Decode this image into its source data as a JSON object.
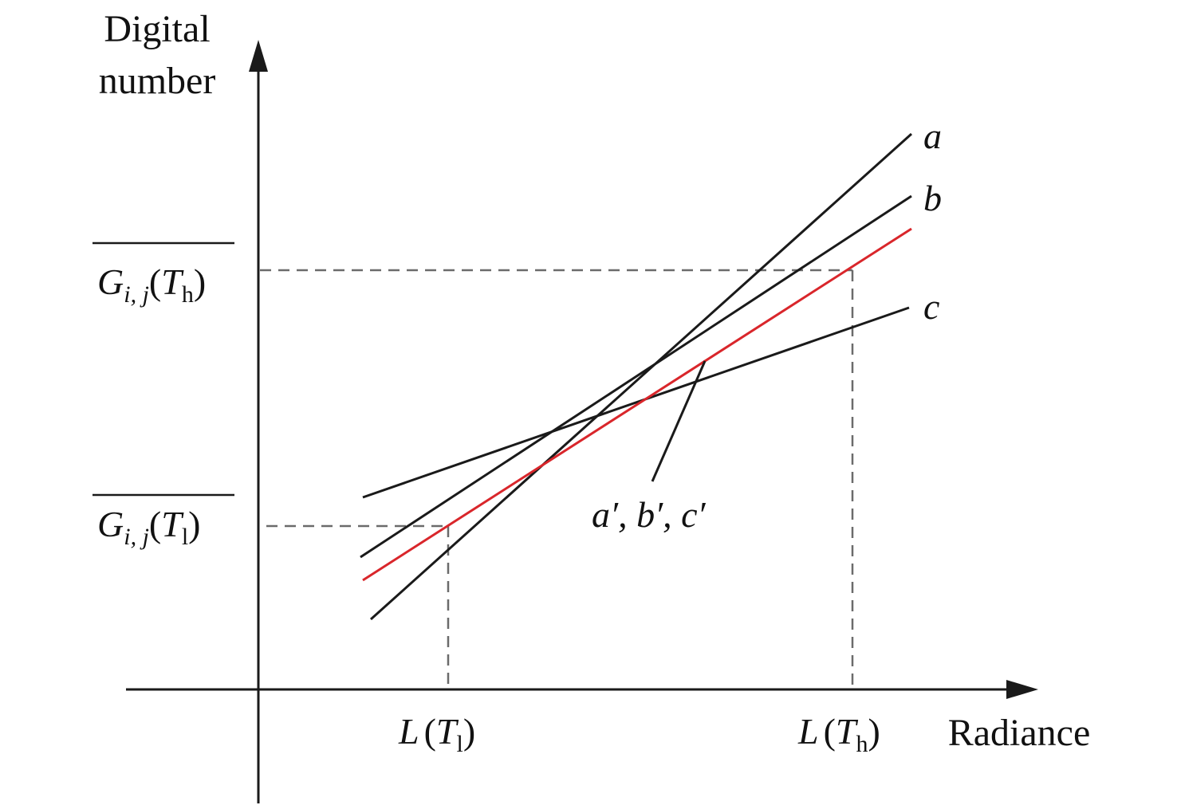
{
  "axes": {
    "y_title_line1": "Digital",
    "y_title_line2": "number",
    "x_title": "Radiance"
  },
  "y_ticks": {
    "high": {
      "G": "G",
      "sub": "i, j",
      "open": "(",
      "T": "T",
      "T_sub": "h",
      "close": ")"
    },
    "low": {
      "G": "G",
      "sub": "i, j",
      "open": "(",
      "T": "T",
      "T_sub": "l",
      "close": ")"
    }
  },
  "x_ticks": {
    "low": {
      "L": "L",
      "open": "(",
      "T": "T",
      "T_sub": "l",
      "close": ")"
    },
    "high": {
      "L": "L",
      "open": "(",
      "T": "T",
      "T_sub": "h",
      "close": ")"
    }
  },
  "lines": [
    {
      "label": "a",
      "color": "#1a1a1a"
    },
    {
      "label": "b",
      "color": "#1a1a1a"
    },
    {
      "label": "c",
      "color": "#1a1a1a"
    },
    {
      "label": "a′, b′, c′",
      "color": "#d9262b"
    }
  ],
  "colors": {
    "axis": "#1a1a1a",
    "dashed": "#6b6b6b",
    "corrected": "#d9262b"
  }
}
